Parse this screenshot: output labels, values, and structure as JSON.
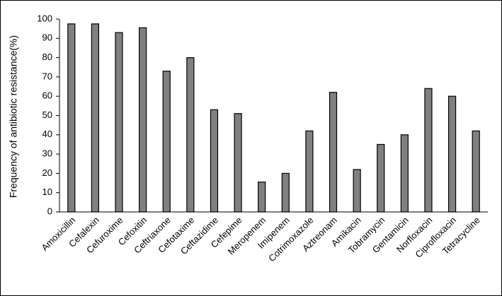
{
  "chart_data": {
    "type": "bar",
    "y_label": "Frequency of antibiotic resistance(%)",
    "categories": [
      "Amoxicillin",
      "Cefalexin",
      "Cefuroxime",
      "Cefoxitin",
      "Ceftriaxone",
      "Cefotaxime",
      "Ceftazidime",
      "Cefepime",
      "Meropenem",
      "Imipenem",
      "Cotrimoxazole",
      "Aztreonam",
      "Amikacin",
      "Tobramycin",
      "Gentamicin",
      "Norfloxacin",
      "Ciprofloxacin",
      "Tetracycline"
    ],
    "values": [
      97.5,
      97.5,
      93,
      95.5,
      73,
      80,
      53,
      51,
      15.5,
      20,
      42,
      62,
      22,
      35,
      40,
      64,
      60,
      42
    ],
    "color": "#808080",
    "ylim": [
      0,
      100
    ],
    "yticks": [
      0,
      10,
      20,
      30,
      40,
      50,
      60,
      70,
      80,
      90,
      100
    ],
    "grid": false
  }
}
